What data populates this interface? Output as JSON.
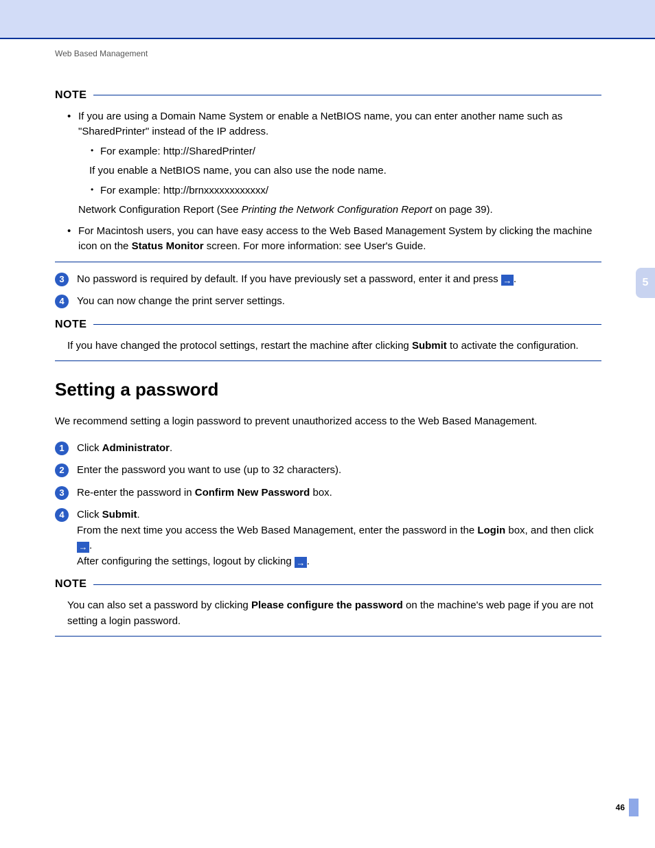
{
  "header": {
    "breadcrumb": "Web Based Management"
  },
  "chapter_tab": "5",
  "page_number": "46",
  "note1": {
    "label": "NOTE",
    "bullets": [
      {
        "text": "If you are using a Domain Name System or enable a NetBIOS name, you can enter another name such as \"SharedPrinter\" instead of the IP address.",
        "sub1_prefix": "For example: http://",
        "sub1_rest": "SharedPrinter/",
        "after1": "If you enable a NetBIOS name, you can also use the node name.",
        "sub2_prefix": "For example: http://",
        "sub2_rest": "brnxxxxxxxxxxxx/",
        "after2_pre": "Network Configuration Report (See ",
        "after2_ref": "Printing the Network Configuration Report",
        "after2_post": " on page 39)."
      },
      {
        "text_pre": "For Macintosh users, you can have easy access to the Web Based Management System by clicking the machine icon on the ",
        "text_bold": "Status Monitor",
        "text_post": " screen. For more information: see User's Guide."
      }
    ]
  },
  "steps_top": {
    "s3": {
      "num": "3",
      "text": "No password is required by default. If you have previously set a password, enter it and press ",
      "tail": "."
    },
    "s4": {
      "num": "4",
      "text": "You can now change the print server settings."
    }
  },
  "note2": {
    "label": "NOTE",
    "text_pre": "If you have changed the protocol settings, restart the machine after clicking ",
    "text_bold": "Submit",
    "text_post": " to activate the configuration."
  },
  "section": {
    "title": "Setting a password",
    "intro": "We recommend setting a login password to prevent unauthorized access to the Web Based Management.",
    "s1": {
      "num": "1",
      "pre": "Click ",
      "bold": "Administrator",
      "post": "."
    },
    "s2": {
      "num": "2",
      "text": "Enter the password you want to use (up to 32 characters)."
    },
    "s3": {
      "num": "3",
      "pre": "Re-enter the password in ",
      "bold": "Confirm New Password",
      "post": " box."
    },
    "s4": {
      "num": "4",
      "l1_pre": "Click ",
      "l1_bold": "Submit",
      "l1_post": ".",
      "l2_pre": "From the next time you access the Web Based Management, enter the password in the ",
      "l2_bold": "Login",
      "l2_post": " box, and then click ",
      "l2_tail": ".",
      "l3_pre": "After configuring the settings, logout by clicking ",
      "l3_tail": "."
    }
  },
  "note3": {
    "label": "NOTE",
    "pre": "You can also set a password by clicking ",
    "bold": "Please configure the password",
    "post": " on the machine's web page if you are not setting a login password."
  },
  "colors": {
    "top_band": "#d2dcf7",
    "accent_line": "#003399",
    "badge_bg": "#2a5cc4",
    "chapter_tab": "#c8d3f0",
    "foot_bar": "#8ea8e8"
  }
}
